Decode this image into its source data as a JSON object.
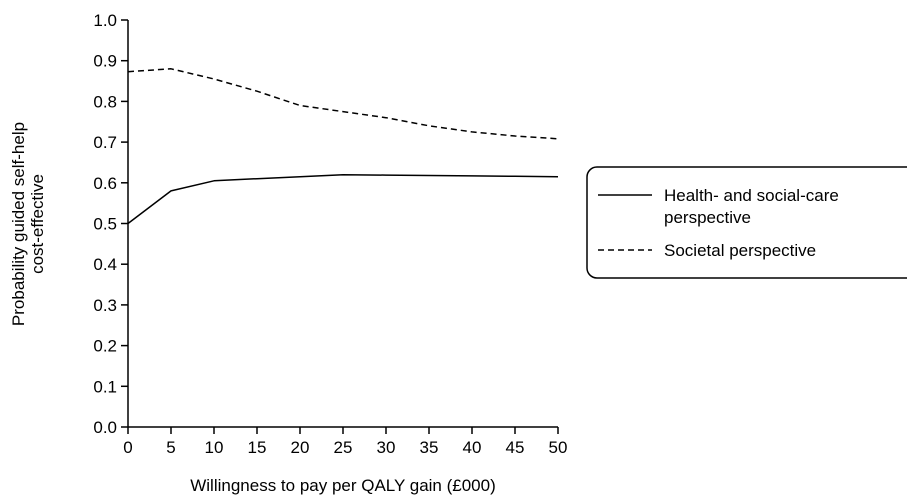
{
  "chart_data": {
    "type": "line",
    "xlabel": "Willingness to pay per QALY gain (£000)",
    "ylabel": [
      "Probability guided self-help",
      "cost-effective"
    ],
    "xlim": [
      0,
      50
    ],
    "ylim": [
      0,
      1.0
    ],
    "x_ticks": [
      "0",
      "5",
      "10",
      "15",
      "20",
      "25",
      "30",
      "35",
      "40",
      "45",
      "50"
    ],
    "y_ticks": [
      "0.0",
      "0.1",
      "0.2",
      "0.3",
      "0.4",
      "0.5",
      "0.6",
      "0.7",
      "0.8",
      "0.9",
      "1.0"
    ],
    "grid": false,
    "legend_position": "right",
    "series": [
      {
        "name": [
          "Health- and social-care",
          "perspective"
        ],
        "style": "solid",
        "color": "#000000",
        "x": [
          0,
          5,
          10,
          15,
          20,
          25,
          30,
          35,
          40,
          45,
          50
        ],
        "y": [
          0.5,
          0.58,
          0.605,
          0.61,
          0.615,
          0.62,
          0.619,
          0.618,
          0.617,
          0.616,
          0.615
        ]
      },
      {
        "name": [
          "Societal perspective"
        ],
        "style": "dashed",
        "color": "#000000",
        "x": [
          0,
          5,
          10,
          15,
          20,
          25,
          30,
          35,
          40,
          45,
          50
        ],
        "y": [
          0.873,
          0.88,
          0.855,
          0.825,
          0.79,
          0.775,
          0.76,
          0.74,
          0.725,
          0.715,
          0.708
        ]
      }
    ]
  }
}
